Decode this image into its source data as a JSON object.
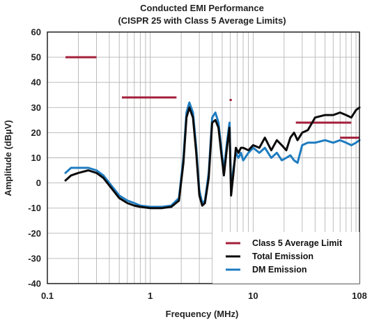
{
  "chart_data": {
    "type": "line",
    "title": "Conducted EMI Performance",
    "subtitle": "(CISPR 25 with Class 5 Average Limits)",
    "xlabel": "Frequency (MHz)",
    "ylabel": "Amplitude (dBµV)",
    "xscale": "log",
    "xlim": [
      0.1,
      108
    ],
    "ylim": [
      -40,
      60
    ],
    "x_ticks": [
      {
        "value": 0.1,
        "label": "0.1"
      },
      {
        "value": 1,
        "label": "1"
      },
      {
        "value": 10,
        "label": "10"
      },
      {
        "value": 108,
        "label": "108"
      }
    ],
    "y_ticks": [
      -40,
      -30,
      -20,
      -10,
      0,
      10,
      20,
      30,
      40,
      50,
      60
    ],
    "grid": true,
    "legend_position": "bottom-right",
    "colors": {
      "limit": "#a31f3a",
      "total": "#0b0b0b",
      "dm": "#1e7cc0",
      "grid": "#b5b5b5"
    },
    "limit_segments": [
      {
        "x": [
          0.15,
          0.3
        ],
        "y": 50
      },
      {
        "x": [
          0.53,
          1.8
        ],
        "y": 34
      },
      {
        "x": [
          5.9,
          6.2
        ],
        "y": 33
      },
      {
        "x": [
          26,
          30
        ],
        "y": 24
      },
      {
        "x": [
          30,
          90
        ],
        "y": 24
      },
      {
        "x": [
          70,
          108
        ],
        "y": 18
      }
    ],
    "series": [
      {
        "name": "Class 5 Average Limit",
        "key": "limit"
      },
      {
        "name": "Total Emission",
        "key": "total",
        "x": [
          0.15,
          0.17,
          0.2,
          0.25,
          0.3,
          0.35,
          0.4,
          0.5,
          0.6,
          0.7,
          0.8,
          1.0,
          1.3,
          1.6,
          1.9,
          2.1,
          2.25,
          2.4,
          2.6,
          2.8,
          3.0,
          3.2,
          3.4,
          3.7,
          4.0,
          4.3,
          4.6,
          4.9,
          5.2,
          5.6,
          5.9,
          6.1,
          6.4,
          6.8,
          7.2,
          7.6,
          8.0,
          9.0,
          10.0,
          11.5,
          13.0,
          15.0,
          17.0,
          19.0,
          21.0,
          23.0,
          25.0,
          27.0,
          30.0,
          34.0,
          40.0,
          50.0,
          60.0,
          70.0,
          80.0,
          90.0,
          100.0,
          108.0
        ],
        "values": [
          1,
          3,
          4,
          5,
          4,
          2,
          -1,
          -6,
          -8,
          -9,
          -9.5,
          -10,
          -10,
          -9.5,
          -7,
          8,
          26,
          30,
          26,
          12,
          -5,
          -9,
          -8,
          2,
          24,
          25,
          22,
          12,
          3,
          15,
          22,
          -5,
          3,
          14,
          12,
          14,
          14,
          13,
          15,
          14,
          18,
          13,
          17,
          15,
          13,
          18,
          20,
          17,
          20,
          21,
          26,
          27,
          27,
          28,
          27,
          26,
          29,
          30
        ]
      },
      {
        "name": "DM Emission",
        "key": "dm",
        "x": [
          0.15,
          0.17,
          0.2,
          0.25,
          0.3,
          0.35,
          0.4,
          0.5,
          0.6,
          0.7,
          0.8,
          1.0,
          1.3,
          1.6,
          1.9,
          2.1,
          2.25,
          2.4,
          2.6,
          2.8,
          3.0,
          3.2,
          3.4,
          3.7,
          4.0,
          4.3,
          4.6,
          4.9,
          5.2,
          5.6,
          5.9,
          6.1,
          6.4,
          6.8,
          7.2,
          7.6,
          8.0,
          9.0,
          10.0,
          11.5,
          13.0,
          15.0,
          17.0,
          19.0,
          21.0,
          23.0,
          25.0,
          27.0,
          30.0,
          34.0,
          40.0,
          50.0,
          60.0,
          70.0,
          80.0,
          90.0,
          100.0,
          108.0
        ],
        "values": [
          4,
          6,
          6,
          6,
          5,
          3,
          0,
          -5,
          -7,
          -8,
          -9,
          -9.5,
          -9.5,
          -9,
          -6,
          10,
          28,
          32,
          28,
          14,
          -3,
          -8,
          -7,
          4,
          26,
          28,
          24,
          14,
          5,
          17,
          24,
          -3,
          5,
          12,
          10,
          12,
          9,
          12,
          14,
          12,
          14,
          10,
          12,
          9,
          10,
          11,
          9,
          8,
          15,
          16,
          16,
          17,
          16,
          17,
          16,
          15,
          16,
          17
        ]
      }
    ]
  }
}
